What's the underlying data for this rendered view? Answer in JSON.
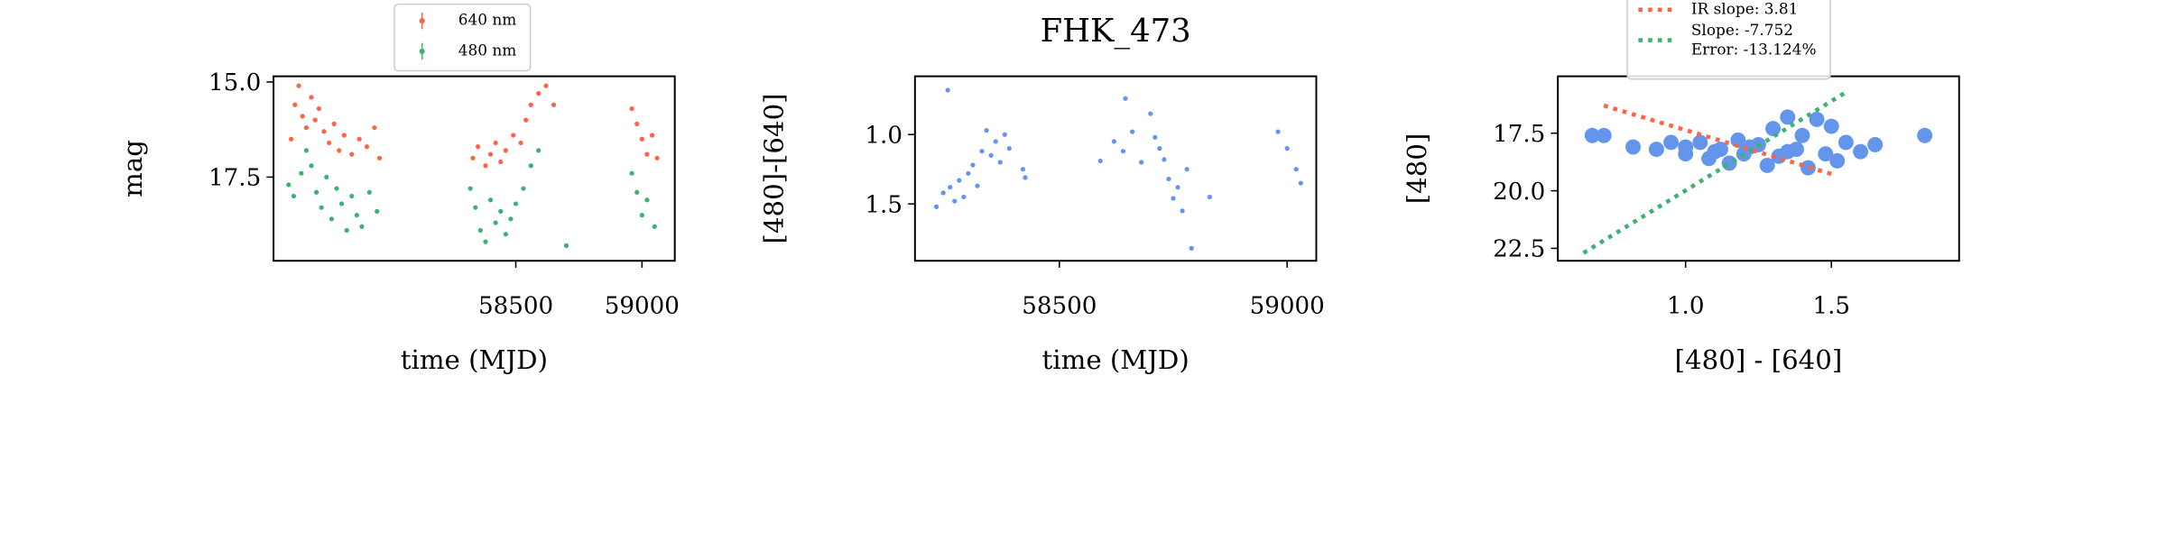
{
  "chart_data": [
    {
      "type": "scatter",
      "xlabel": "time (MJD)",
      "ylabel": "mag",
      "xlim": [
        57540,
        59130
      ],
      "ylim": [
        19.7,
        14.85
      ],
      "xticks": [
        58500,
        59000
      ],
      "yticks": [
        {
          "value": 15,
          "label": "15.0"
        },
        17.5
      ],
      "legend": "upper center",
      "series": [
        {
          "name": "640 nm",
          "color": "#ff6347",
          "x": [
            57610,
            57625,
            57640,
            57655,
            57670,
            57690,
            57705,
            57720,
            57740,
            57760,
            57780,
            57800,
            57820,
            57850,
            57880,
            57910,
            57940,
            57960,
            58330,
            58350,
            58380,
            58400,
            58420,
            58440,
            58460,
            58490,
            58520,
            58540,
            58560,
            58590,
            58620,
            58650,
            58960,
            58980,
            59000,
            59020,
            59040,
            59060
          ],
          "values": [
            16.5,
            15.6,
            15.1,
            15.9,
            16.2,
            15.4,
            16.0,
            15.7,
            16.3,
            16.6,
            16.1,
            16.8,
            16.4,
            16.9,
            16.5,
            16.7,
            16.2,
            17.0,
            17.0,
            16.7,
            17.2,
            16.9,
            16.6,
            17.1,
            16.8,
            16.4,
            16.6,
            16.0,
            15.6,
            15.3,
            15.1,
            15.6,
            15.7,
            16.1,
            16.5,
            16.9,
            16.4,
            17.0
          ]
        },
        {
          "name": "480 nm",
          "color": "#3cb371",
          "x": [
            57600,
            57620,
            57650,
            57670,
            57690,
            57710,
            57730,
            57750,
            57770,
            57790,
            57810,
            57830,
            57850,
            57870,
            57890,
            57920,
            57950,
            58320,
            58340,
            58360,
            58380,
            58400,
            58420,
            58440,
            58460,
            58480,
            58500,
            58530,
            58560,
            58590,
            58700,
            58960,
            58980,
            59000,
            59020,
            59050
          ],
          "values": [
            17.7,
            18.0,
            17.4,
            16.8,
            17.2,
            17.9,
            18.3,
            17.5,
            18.6,
            17.8,
            18.2,
            18.9,
            18.0,
            18.5,
            18.8,
            17.9,
            18.4,
            17.8,
            18.3,
            18.9,
            19.2,
            18.1,
            18.7,
            18.4,
            19.0,
            18.6,
            18.2,
            17.8,
            17.2,
            16.8,
            19.3,
            17.4,
            17.9,
            18.5,
            18.1,
            18.8
          ]
        }
      ]
    },
    {
      "type": "scatter",
      "title": "FHK_473",
      "xlabel": "time (MJD)",
      "ylabel": "[480]-[640]",
      "xlim": [
        58183,
        59064
      ],
      "ylim": [
        1.91,
        0.58
      ],
      "xticks": [
        58500,
        59000
      ],
      "yticks": [
        {
          "value": 1,
          "label": "1.0"
        },
        1.5
      ],
      "series": [
        {
          "color": "#6495ed",
          "x": [
            58230,
            58245,
            58255,
            58260,
            58270,
            58280,
            58290,
            58300,
            58310,
            58320,
            58330,
            58340,
            58350,
            58360,
            58370,
            58380,
            58390,
            58420,
            58425,
            58590,
            58620,
            58640,
            58645,
            58660,
            58680,
            58700,
            58710,
            58720,
            58730,
            58740,
            58750,
            58760,
            58770,
            58780,
            58790,
            58830,
            58980,
            59000,
            59020,
            59030
          ],
          "values": [
            1.52,
            1.42,
            0.68,
            1.38,
            1.48,
            1.33,
            1.45,
            1.28,
            1.22,
            1.37,
            1.12,
            0.97,
            1.15,
            1.05,
            1.2,
            1.0,
            1.1,
            1.25,
            1.31,
            1.19,
            1.05,
            1.12,
            0.74,
            0.98,
            1.2,
            0.85,
            1.02,
            1.1,
            1.18,
            1.32,
            1.46,
            1.38,
            1.55,
            1.25,
            1.82,
            1.45,
            0.98,
            1.1,
            1.25,
            1.35
          ]
        }
      ]
    },
    {
      "type": "scatter",
      "xlabel": "[480] - [640]",
      "ylabel": "[480]",
      "xlim": [
        0.562,
        1.938
      ],
      "ylim": [
        23.04,
        15.03
      ],
      "xticks": [
        {
          "value": 1,
          "label": "1.0"
        },
        1.5
      ],
      "yticks": [
        17.5,
        {
          "value": 20,
          "label": "20.0"
        },
        22.5
      ],
      "legend": "upper center",
      "series": [
        {
          "color": "#6495ed",
          "x": [
            0.68,
            0.72,
            0.82,
            0.9,
            0.95,
            1.0,
            1.05,
            1.08,
            1.12,
            1.15,
            1.18,
            1.2,
            1.25,
            1.28,
            1.3,
            1.32,
            1.35,
            1.38,
            1.4,
            1.42,
            1.45,
            1.48,
            1.5,
            1.52,
            1.55,
            1.6,
            1.65,
            1.82,
            1.0,
            1.1,
            1.22,
            1.35
          ],
          "values": [
            17.6,
            17.6,
            18.1,
            18.2,
            17.9,
            18.4,
            17.9,
            18.6,
            18.2,
            18.8,
            17.8,
            18.4,
            18.0,
            18.9,
            17.3,
            18.5,
            16.8,
            18.2,
            17.6,
            19.0,
            16.9,
            18.4,
            17.2,
            18.7,
            17.9,
            18.3,
            18.0,
            17.6,
            18.1,
            18.3,
            18.1,
            18.3
          ]
        },
        {
          "type": "line",
          "name": "IR slope: 3.81",
          "color": "#ff6347",
          "x": [
            0.72,
            1.5
          ],
          "values": [
            16.3,
            19.27
          ]
        },
        {
          "type": "line",
          "name": "Slope: -7.752\nError: -13.124%",
          "color": "#3cb371",
          "x": [
            0.65,
            1.55
          ],
          "values": [
            22.7,
            15.72
          ]
        }
      ]
    }
  ]
}
